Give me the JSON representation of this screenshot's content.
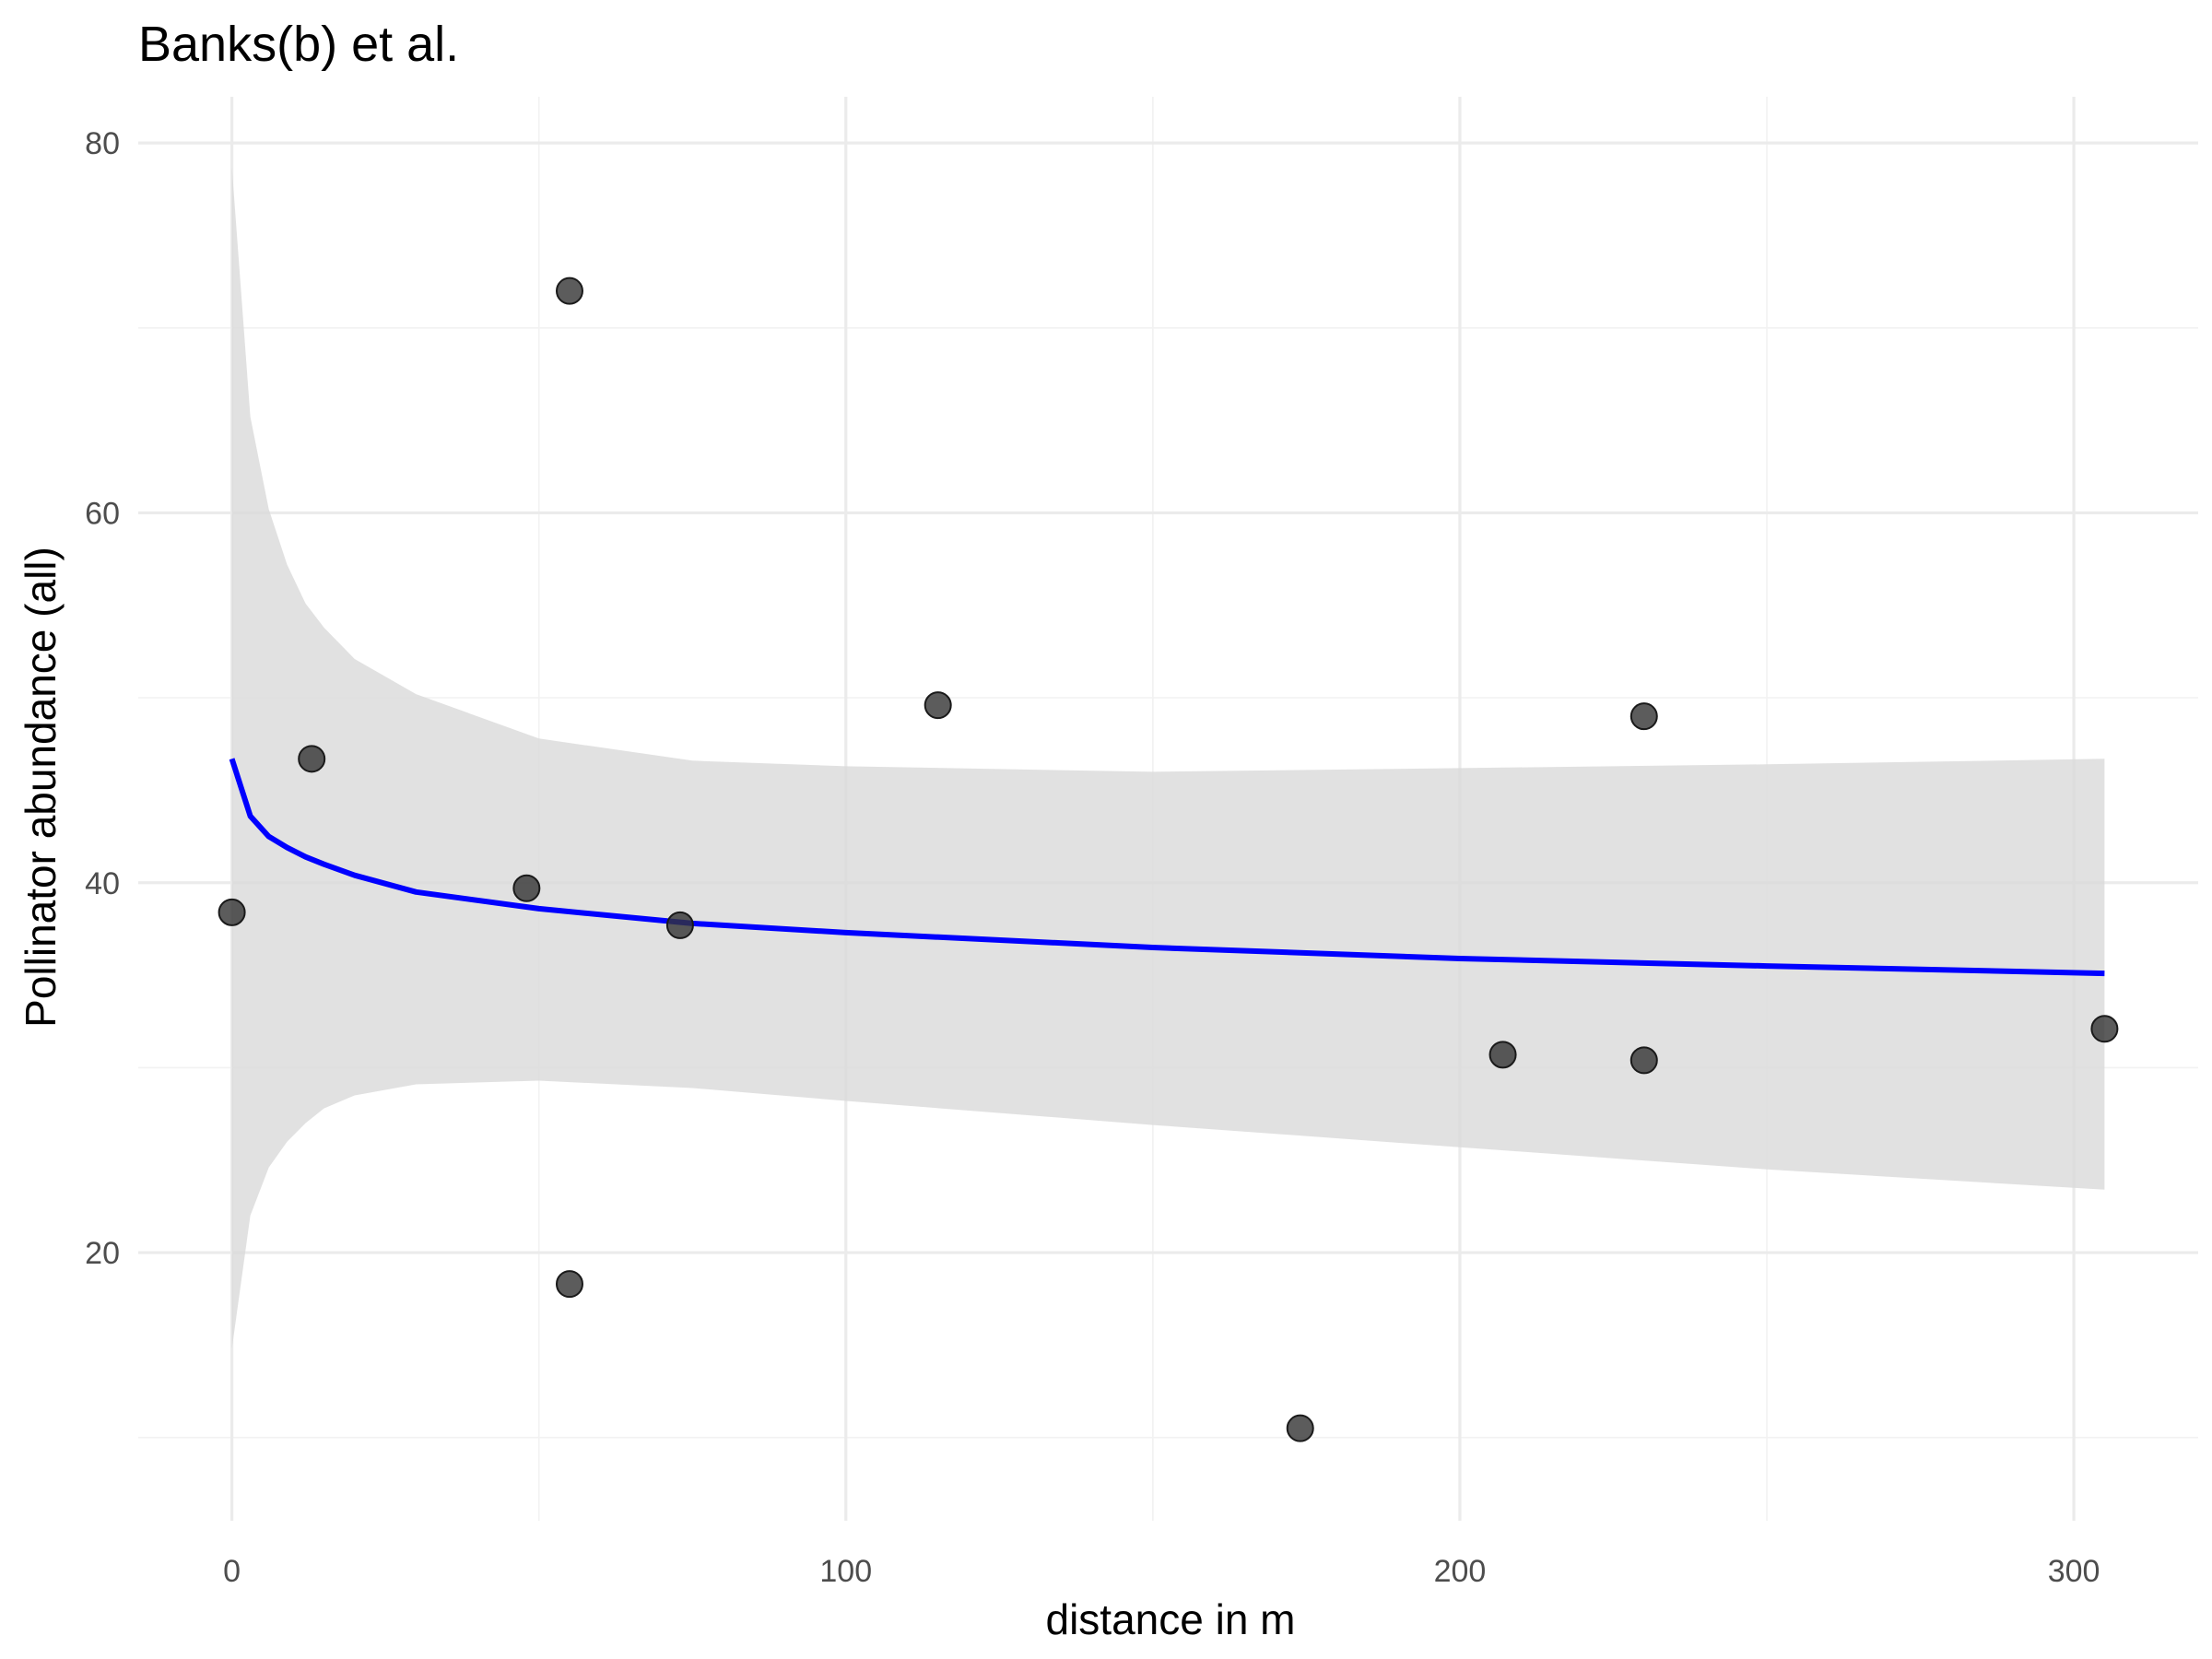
{
  "chart_data": {
    "type": "scatter",
    "title": "Banks(b) et al.",
    "xlabel": "distance in m",
    "ylabel": "Pollinator abundance (all)",
    "xlim": [
      -15.25,
      320.25
    ],
    "ylim": [
      5.5,
      82.5
    ],
    "x_ticks": [
      0,
      100,
      200,
      300
    ],
    "y_ticks": [
      20,
      40,
      60,
      80
    ],
    "x_tick_labels": [
      "0",
      "100",
      "200",
      "300"
    ],
    "y_tick_labels": [
      "20",
      "40",
      "60",
      "80"
    ],
    "grid": true,
    "colors": {
      "points": "#333333",
      "fit_line": "#0000ff",
      "ribbon": "#d9d9d9"
    },
    "points": [
      {
        "x": 0,
        "y": 38.4
      },
      {
        "x": 13,
        "y": 46.7
      },
      {
        "x": 48,
        "y": 39.7
      },
      {
        "x": 55,
        "y": 72.0
      },
      {
        "x": 55,
        "y": 18.3
      },
      {
        "x": 73,
        "y": 37.7
      },
      {
        "x": 115,
        "y": 49.6
      },
      {
        "x": 174,
        "y": 10.5
      },
      {
        "x": 207,
        "y": 30.7
      },
      {
        "x": 230,
        "y": 49.0
      },
      {
        "x": 230,
        "y": 30.4
      },
      {
        "x": 305,
        "y": 32.1
      }
    ],
    "fit_line": {
      "x": [
        0,
        3,
        6,
        9,
        12,
        15,
        20,
        30,
        50,
        75,
        100,
        150,
        200,
        250,
        305
      ],
      "y": [
        46.7,
        43.6,
        42.5,
        41.9,
        41.4,
        41.0,
        40.4,
        39.5,
        38.6,
        37.8,
        37.3,
        36.5,
        35.9,
        35.5,
        35.1
      ],
      "lower": [
        14.8,
        22.0,
        24.6,
        26.0,
        27.0,
        27.8,
        28.5,
        29.1,
        29.3,
        28.9,
        28.2,
        26.9,
        25.7,
        24.5,
        23.4
      ],
      "upper": [
        78.7,
        65.2,
        60.2,
        57.2,
        55.1,
        53.8,
        52.1,
        50.2,
        47.8,
        46.6,
        46.3,
        46.0,
        46.2,
        46.4,
        46.7
      ]
    }
  }
}
